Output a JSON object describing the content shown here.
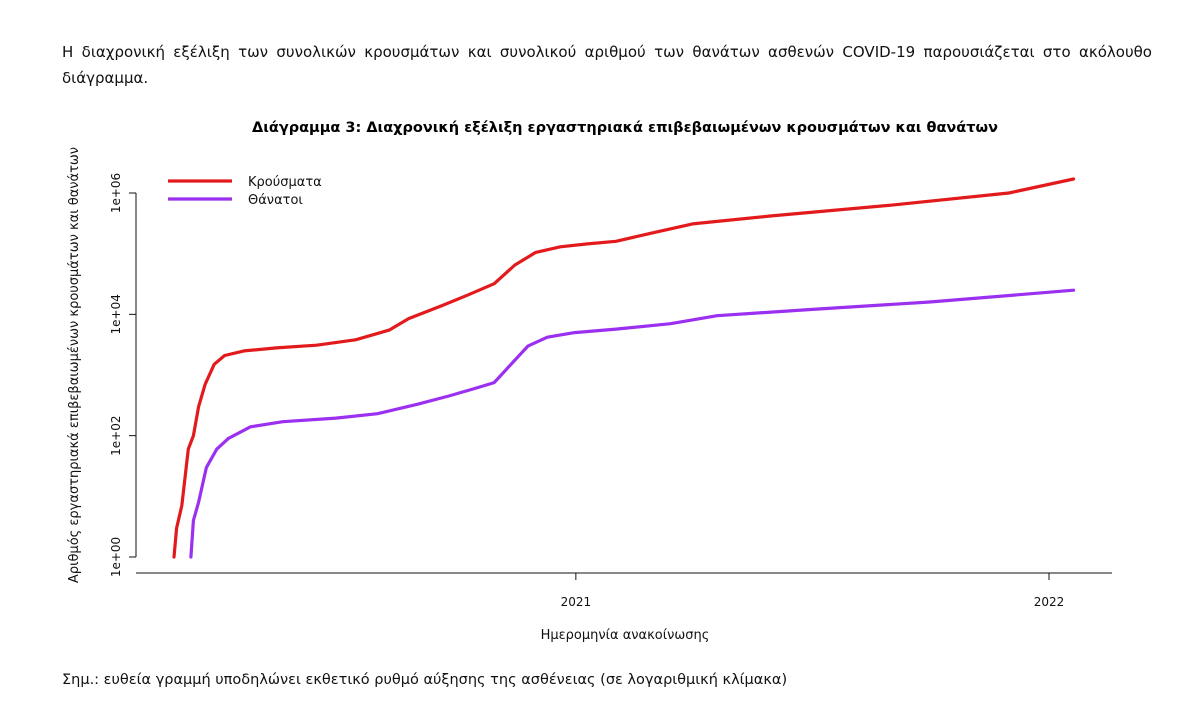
{
  "intro_text": "Η διαχρονική εξέλιξη των συνολικών κρουσμάτων και συνολικού αριθμού των θανάτων ασθενών COVID-19 παρουσιάζεται στο ακόλουθο διάγραμμα.",
  "note_text": "Σημ.: ευθεία γραμμή υποδηλώνει εκθετικό ρυθμό αύξησης της ασθένειας (σε λογαριθμική κλίμακα)",
  "colors": {
    "cases": "#e31a1c",
    "deaths": "#9b30f0"
  },
  "chart_data": {
    "type": "line",
    "title": "Διάγραμμα 3: Διαχρονική εξέλιξη εργαστηριακά επιβεβαιωμένων κρουσμάτων και θανάτων",
    "xlabel": "Ημερομηνία ανακοίνωσης",
    "ylabel": "Αριθμός εργαστηριακά επιβεβαιωμένων κρουσμάτων και θανάτων",
    "y_scale": "log10",
    "ylim": [
      1,
      1000000
    ],
    "y_ticks": [
      {
        "value": 1,
        "label": "1e+00"
      },
      {
        "value": 100,
        "label": "1e+02"
      },
      {
        "value": 10000,
        "label": "1e+04"
      },
      {
        "value": 1000000,
        "label": "1e+06"
      }
    ],
    "x_ticks": [
      {
        "value": "2021-01-01",
        "label": "2021"
      },
      {
        "value": "2022-01-01",
        "label": "2022"
      }
    ],
    "xlim": [
      "2020-02-26",
      "2022-01-26"
    ],
    "legend_position": "top-left",
    "grid": false,
    "series": [
      {
        "name": "Κρούσματα",
        "color_key": "cases",
        "points": [
          [
            "2020-02-26",
            1
          ],
          [
            "2020-02-28",
            3
          ],
          [
            "2020-03-03",
            7
          ],
          [
            "2020-03-08",
            60
          ],
          [
            "2020-03-12",
            100
          ],
          [
            "2020-03-16",
            300
          ],
          [
            "2020-03-21",
            700
          ],
          [
            "2020-03-28",
            1500
          ],
          [
            "2020-04-05",
            2100
          ],
          [
            "2020-04-20",
            2500
          ],
          [
            "2020-05-15",
            2800
          ],
          [
            "2020-06-15",
            3100
          ],
          [
            "2020-07-15",
            3800
          ],
          [
            "2020-08-10",
            5500
          ],
          [
            "2020-08-25",
            8500
          ],
          [
            "2020-09-20",
            14000
          ],
          [
            "2020-10-10",
            21000
          ],
          [
            "2020-10-30",
            32000
          ],
          [
            "2020-11-15",
            65000
          ],
          [
            "2020-12-01",
            105000
          ],
          [
            "2020-12-20",
            130000
          ],
          [
            "2021-01-10",
            145000
          ],
          [
            "2021-02-01",
            160000
          ],
          [
            "2021-03-01",
            220000
          ],
          [
            "2021-04-01",
            310000
          ],
          [
            "2021-06-01",
            420000
          ],
          [
            "2021-09-01",
            630000
          ],
          [
            "2021-12-01",
            1000000
          ],
          [
            "2022-01-20",
            1700000
          ]
        ]
      },
      {
        "name": "Θάνατοι",
        "color_key": "deaths",
        "points": [
          [
            "2020-03-10",
            1
          ],
          [
            "2020-03-12",
            4
          ],
          [
            "2020-03-16",
            8
          ],
          [
            "2020-03-22",
            30
          ],
          [
            "2020-03-30",
            60
          ],
          [
            "2020-04-08",
            90
          ],
          [
            "2020-04-25",
            140
          ],
          [
            "2020-05-20",
            170
          ],
          [
            "2020-06-30",
            195
          ],
          [
            "2020-08-01",
            230
          ],
          [
            "2020-09-01",
            330
          ],
          [
            "2020-09-25",
            450
          ],
          [
            "2020-10-15",
            600
          ],
          [
            "2020-10-30",
            750
          ],
          [
            "2020-11-12",
            1500
          ],
          [
            "2020-11-25",
            3000
          ],
          [
            "2020-12-10",
            4200
          ],
          [
            "2020-12-31",
            5000
          ],
          [
            "2021-02-01",
            5700
          ],
          [
            "2021-03-15",
            7000
          ],
          [
            "2021-04-20",
            9500
          ],
          [
            "2021-07-01",
            12000
          ],
          [
            "2021-10-01",
            16000
          ],
          [
            "2022-01-20",
            25000
          ]
        ]
      }
    ]
  }
}
